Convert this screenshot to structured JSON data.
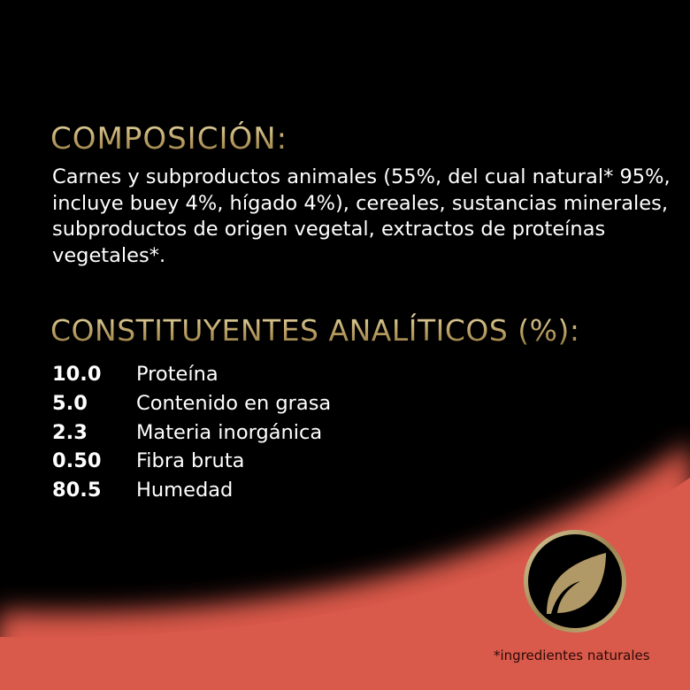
{
  "colors": {
    "background": "#000000",
    "accent_coral": "#d9594a",
    "gold": "#b89e62"
  },
  "composition": {
    "title": "COMPOSICIÓN:",
    "text": "Carnes y subproductos animales (55%, del cual natural* 95%, incluye buey 4%, hígado 4%), cereales, sustancias minerales, subproductos de origen vegetal, extractos de proteínas vegetales*."
  },
  "analytical": {
    "title": "CONSTITUYENTES ANALÍTICOS (%):",
    "rows": [
      {
        "value": "10.0",
        "label": "Proteína"
      },
      {
        "value": "5.0",
        "label": "Contenido en grasa"
      },
      {
        "value": "2.3",
        "label": "Materia inorgánica"
      },
      {
        "value": "0.50",
        "label": "Fibra bruta"
      },
      {
        "value": "80.5",
        "label": "Humedad"
      }
    ]
  },
  "badge": {
    "icon": "leaf-icon"
  },
  "footnote": "*ingredientes naturales"
}
